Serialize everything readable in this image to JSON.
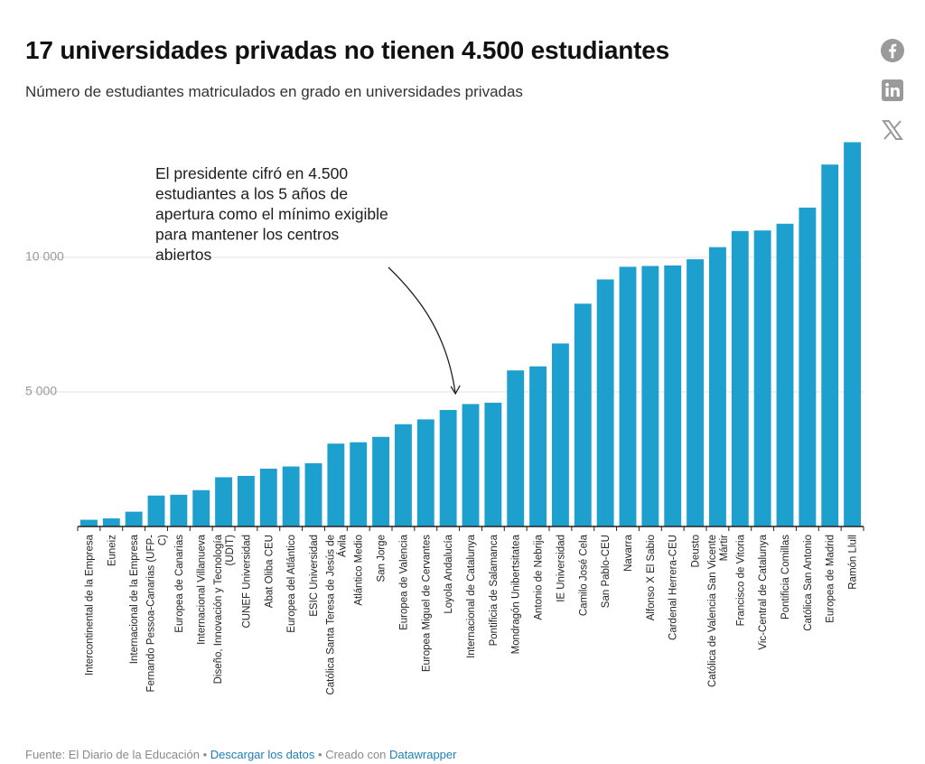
{
  "header": {
    "title": "17 universidades privadas no tienen 4.500 estudiantes",
    "subtitle": "Número de estudiantes matriculados en grado en universidades privadas"
  },
  "share_icons": [
    "facebook-icon",
    "linkedin-icon",
    "x-icon"
  ],
  "annotation": "El presidente cifró en 4.500 estudiantes a los 5 años de apertura como el mínimo exigible para mantener los centros abiertos",
  "footer": {
    "source": "Fuente: El Diario de la Educación",
    "separator": "•",
    "download_label": "Descargar los datos",
    "created_with": "Creado con",
    "tool_label": "Datawrapper"
  },
  "colors": {
    "bar": "#1ea0cf",
    "grid": "#e2e2e2",
    "axis": "#222222",
    "link": "#1f7fb5",
    "icon": "#9a9a9a"
  },
  "chart_data": {
    "type": "bar",
    "categories": [
      "Intercontinental de la Empresa",
      "Euneiz",
      "Internacional de la Empresa",
      "Fernando Pessoa-Canarias (UFP-C)",
      "Europea de Canarias",
      "Internacional Villanueva",
      "Diseño, Innovación y Tecnología (UDIT)",
      "CUNEF Universidad",
      "Abat Oliba CEU",
      "Europea del Atlántico",
      "ESIC Universidad",
      "Católica Santa Teresa de Jesús de Ávila",
      "Atlántico Medio",
      "San Jorge",
      "Europea de Valencia",
      "Europea Miguel de Cervantes",
      "Loyola Andalucía",
      "Internacional de Catalunya",
      "Pontificia de Salamanca",
      "Mondragón Unibertsitatea",
      "Antonio de Nebrija",
      "IE Universidad",
      "Camilo José Cela",
      "San Pablo-CEU",
      "Navarra",
      "Alfonso X El Sabio",
      "Cardenal Herrera-CEU",
      "Deusto",
      "Católica de Valencia San Vicente Mártir",
      "Francisco de Vitoria",
      "Vic-Central de Catalunya",
      "Pontificia Comillas",
      "Católica San Antonio",
      "Europea de Madrid",
      "Ramón Llull"
    ],
    "label_lines": [
      [
        "Intercontinental de la Empresa"
      ],
      [
        "Euneiz"
      ],
      [
        "Internacional de la Empresa"
      ],
      [
        "Fernando Pessoa-Canarias (UFP-",
        "C)"
      ],
      [
        "Europea de Canarias"
      ],
      [
        "Internacional Villanueva"
      ],
      [
        "Diseño, Innovación y Tecnología",
        "(UDIT)"
      ],
      [
        "CUNEF Universidad"
      ],
      [
        "Abat Oliba CEU"
      ],
      [
        "Europea del Atlántico"
      ],
      [
        "ESIC Universidad"
      ],
      [
        "Católica Santa Teresa de Jesús de",
        "Ávila"
      ],
      [
        "Atlántico Medio"
      ],
      [
        "San Jorge"
      ],
      [
        "Europea de Valencia"
      ],
      [
        "Europea Miguel de Cervantes"
      ],
      [
        "Loyola Andalucía"
      ],
      [
        "Internacional de Catalunya"
      ],
      [
        "Pontificia de Salamanca"
      ],
      [
        "Mondragón Unibertsitatea"
      ],
      [
        "Antonio de Nebrija"
      ],
      [
        "IE Universidad"
      ],
      [
        "Camilo José Cela"
      ],
      [
        "San Pablo-CEU"
      ],
      [
        "Navarra"
      ],
      [
        "Alfonso X El Sabio"
      ],
      [
        "Cardenal Herrera-CEU"
      ],
      [
        "Deusto"
      ],
      [
        "Católica de Valencia San Vicente",
        "Mártir"
      ],
      [
        "Francisco de Vitoria"
      ],
      [
        "Vic-Central de Catalunya"
      ],
      [
        "Pontificia Comillas"
      ],
      [
        "Católica San Antonio"
      ],
      [
        "Europea de Madrid"
      ],
      [
        "Ramón Llull"
      ]
    ],
    "values": [
      250,
      300,
      550,
      1150,
      1180,
      1350,
      1830,
      1880,
      2150,
      2230,
      2350,
      3080,
      3130,
      3330,
      3800,
      3980,
      4330,
      4550,
      4600,
      5800,
      5950,
      6800,
      8280,
      9180,
      9650,
      9680,
      9700,
      9930,
      10380,
      10980,
      11000,
      11250,
      11850,
      13450,
      14280
    ],
    "y_ticks": [
      5000,
      10000
    ],
    "y_tick_labels": [
      "5 000",
      "10 000"
    ],
    "ylim": [
      0,
      15000
    ],
    "grid": true,
    "xlabel": "",
    "ylabel": ""
  }
}
